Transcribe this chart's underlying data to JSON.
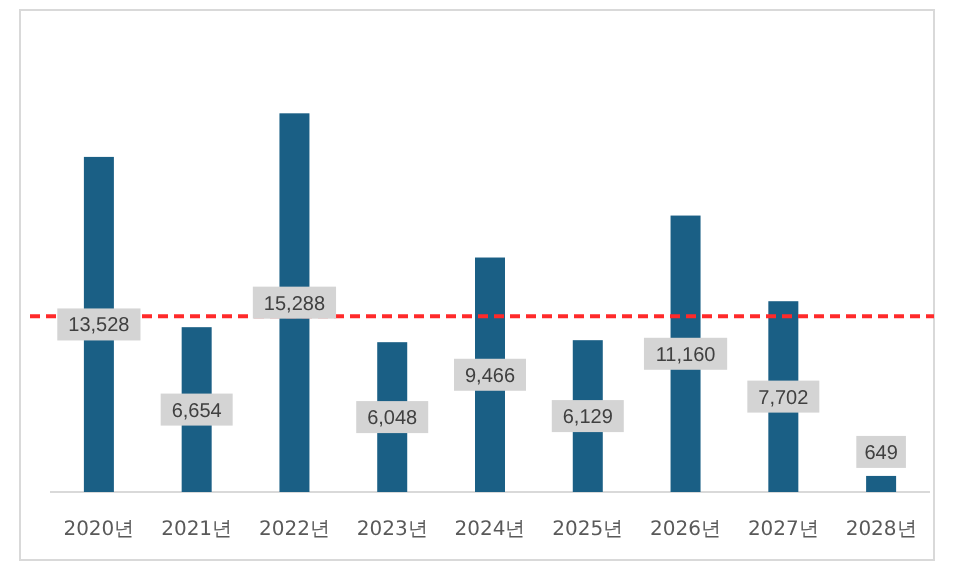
{
  "chart_data": {
    "type": "bar",
    "categories": [
      "2020년",
      "2021년",
      "2022년",
      "2023년",
      "2024년",
      "2025년",
      "2026년",
      "2027년",
      "2028년"
    ],
    "values": [
      13528,
      6654,
      15288,
      6048,
      9466,
      6129,
      11160,
      7702,
      649
    ],
    "value_labels": [
      "13,528",
      "6,654",
      "15,288",
      "6,048",
      "9,466",
      "6,129",
      "11,160",
      "7,702",
      "649"
    ],
    "color": "#1a5f85",
    "ref_lines": [
      {
        "axis": "y",
        "value": 7100,
        "color": "#ff2a2a",
        "line_style": "dashed"
      }
    ]
  }
}
